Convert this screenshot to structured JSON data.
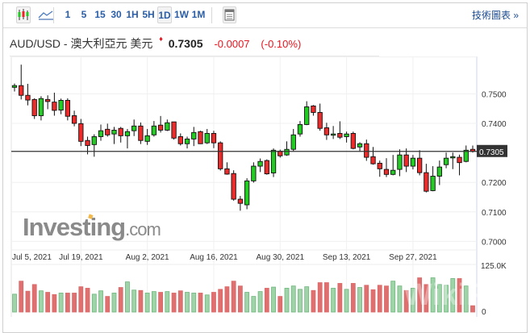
{
  "toolbar": {
    "chart_types": [
      {
        "icon": "candlestick-chart-icon",
        "selected": true
      },
      {
        "icon": "line-chart-icon",
        "selected": false
      }
    ],
    "intervals": [
      {
        "label": "1",
        "selected": false
      },
      {
        "label": "5",
        "selected": false
      },
      {
        "label": "15",
        "selected": false
      },
      {
        "label": "30",
        "selected": false
      },
      {
        "label": "1H",
        "selected": false
      },
      {
        "label": "5H",
        "selected": false
      },
      {
        "label": "1D",
        "selected": true
      },
      {
        "label": "1W",
        "selected": false
      },
      {
        "label": "1M",
        "selected": false
      }
    ],
    "table_icon": "table-view-icon",
    "technical_chart_link": "技術圖表 »"
  },
  "header": {
    "instrument": "AUD/USD - 澳大利亞元 美元",
    "direction_icon": "down-arrow-icon",
    "price": "0.7305",
    "change": "-0.0007",
    "change_pct": "(-0.10%)",
    "down_color": "#e8141e"
  },
  "watermarks": {
    "brand": "Investing.com",
    "overlay": "WikiFX"
  },
  "chart_data": {
    "type": "candlestick",
    "title": "",
    "xlabel": "",
    "ylabel": "",
    "interval": "1D",
    "x_tick_labels": [
      "Jul 5, 2021",
      "Jul 19, 2021",
      "Aug 2, 2021",
      "Aug 16, 2021",
      "Aug 30, 2021",
      "Sep 13, 2021",
      "Sep 27, 2021"
    ],
    "y_tick_labels": [
      "0.7500",
      "0.7400",
      "0.7200",
      "0.7100",
      "0.7000"
    ],
    "y_ticks": [
      0.75,
      0.74,
      0.72,
      0.71,
      0.7
    ],
    "ylim": [
      0.6995,
      0.7625
    ],
    "current_price_label": "0.7305",
    "current_price": 0.7305,
    "grid": true,
    "up_color": "#22cc22",
    "down_color": "#ee2b2b",
    "ohlc": [
      [
        0.7522,
        0.7535,
        0.7508,
        0.7528
      ],
      [
        0.7528,
        0.7599,
        0.7481,
        0.7495
      ],
      [
        0.7495,
        0.7534,
        0.7461,
        0.7479
      ],
      [
        0.7481,
        0.7485,
        0.7415,
        0.7426
      ],
      [
        0.7426,
        0.7492,
        0.741,
        0.7484
      ],
      [
        0.7481,
        0.7495,
        0.7448,
        0.7474
      ],
      [
        0.7472,
        0.7504,
        0.7426,
        0.7444
      ],
      [
        0.7445,
        0.7484,
        0.7431,
        0.7478
      ],
      [
        0.7478,
        0.7485,
        0.741,
        0.7424
      ],
      [
        0.7426,
        0.7443,
        0.739,
        0.74
      ],
      [
        0.7399,
        0.7415,
        0.7323,
        0.7339
      ],
      [
        0.7342,
        0.7355,
        0.7295,
        0.7325
      ],
      [
        0.7328,
        0.7363,
        0.7287,
        0.7355
      ],
      [
        0.7355,
        0.7396,
        0.7341,
        0.7375
      ],
      [
        0.738,
        0.7399,
        0.7355,
        0.7361
      ],
      [
        0.7364,
        0.7388,
        0.733,
        0.7377
      ],
      [
        0.7383,
        0.7388,
        0.7335,
        0.7358
      ],
      [
        0.7358,
        0.7381,
        0.7315,
        0.7372
      ],
      [
        0.7375,
        0.7413,
        0.7357,
        0.7391
      ],
      [
        0.7391,
        0.7403,
        0.733,
        0.7342
      ],
      [
        0.7339,
        0.7381,
        0.7327,
        0.7358
      ],
      [
        0.7361,
        0.7408,
        0.7355,
        0.7391
      ],
      [
        0.7394,
        0.7425,
        0.7369,
        0.7377
      ],
      [
        0.7377,
        0.7413,
        0.7374,
        0.7402
      ],
      [
        0.7405,
        0.7405,
        0.7345,
        0.735
      ],
      [
        0.7355,
        0.7366,
        0.7325,
        0.7331
      ],
      [
        0.7331,
        0.7355,
        0.7315,
        0.7347
      ],
      [
        0.7347,
        0.7388,
        0.7323,
        0.7369
      ],
      [
        0.7372,
        0.7375,
        0.733,
        0.7331
      ],
      [
        0.7334,
        0.7381,
        0.733,
        0.7366
      ],
      [
        0.7366,
        0.7375,
        0.7316,
        0.7334
      ],
      [
        0.7334,
        0.7339,
        0.724,
        0.7246
      ],
      [
        0.7246,
        0.7268,
        0.7226,
        0.7228
      ],
      [
        0.723,
        0.7241,
        0.7138,
        0.7143
      ],
      [
        0.7143,
        0.7154,
        0.7104,
        0.7129
      ],
      [
        0.7124,
        0.7214,
        0.7109,
        0.7205
      ],
      [
        0.7205,
        0.7268,
        0.7199,
        0.7255
      ],
      [
        0.7255,
        0.7281,
        0.7235,
        0.7271
      ],
      [
        0.7274,
        0.7278,
        0.7226,
        0.7229
      ],
      [
        0.7232,
        0.7315,
        0.7218,
        0.7309
      ],
      [
        0.7306,
        0.7311,
        0.7284,
        0.729
      ],
      [
        0.7293,
        0.7339,
        0.729,
        0.7312
      ],
      [
        0.7312,
        0.7381,
        0.7306,
        0.7361
      ],
      [
        0.7364,
        0.7408,
        0.7355,
        0.7396
      ],
      [
        0.7396,
        0.7475,
        0.7394,
        0.7456
      ],
      [
        0.7459,
        0.7462,
        0.7426,
        0.7437
      ],
      [
        0.7437,
        0.7467,
        0.7375,
        0.7383
      ],
      [
        0.7385,
        0.7402,
        0.7344,
        0.7361
      ],
      [
        0.7362,
        0.7391,
        0.7347,
        0.7364
      ],
      [
        0.7366,
        0.7407,
        0.7347,
        0.7353
      ],
      [
        0.7355,
        0.7372,
        0.7335,
        0.7364
      ],
      [
        0.7366,
        0.7372,
        0.7312,
        0.7315
      ],
      [
        0.732,
        0.7336,
        0.7304,
        0.7331
      ],
      [
        0.7331,
        0.7345,
        0.7273,
        0.7285
      ],
      [
        0.7287,
        0.732,
        0.726,
        0.7263
      ],
      [
        0.7265,
        0.7274,
        0.7219,
        0.7246
      ],
      [
        0.7244,
        0.7282,
        0.7218,
        0.7227
      ],
      [
        0.7227,
        0.7293,
        0.7224,
        0.7241
      ],
      [
        0.7244,
        0.7312,
        0.7221,
        0.7293
      ],
      [
        0.7293,
        0.7315,
        0.7235,
        0.7255
      ],
      [
        0.7255,
        0.7293,
        0.7244,
        0.7282
      ],
      [
        0.7282,
        0.7309,
        0.7224,
        0.7233
      ],
      [
        0.7233,
        0.7263,
        0.7166,
        0.717
      ],
      [
        0.7172,
        0.7255,
        0.717,
        0.7221
      ],
      [
        0.7221,
        0.7274,
        0.7191,
        0.7252
      ],
      [
        0.726,
        0.7301,
        0.7248,
        0.7282
      ],
      [
        0.7283,
        0.7301,
        0.7245,
        0.7287
      ],
      [
        0.7285,
        0.7294,
        0.7224,
        0.7267
      ],
      [
        0.7271,
        0.7325,
        0.7268,
        0.7309
      ],
      [
        0.7312,
        0.7325,
        0.7301,
        0.7305
      ]
    ],
    "volume": {
      "y_tick_labels": [
        "125.0K",
        "0"
      ],
      "ylim": [
        0,
        125000
      ],
      "up_color": "#9fd3a8",
      "down_color": "#e07070",
      "values": [
        48,
        83,
        56,
        74,
        57,
        53,
        47,
        51,
        51,
        51,
        68,
        64,
        48,
        57,
        42,
        51,
        66,
        81,
        59,
        58,
        51,
        55,
        53,
        55,
        51,
        57,
        53,
        51,
        51,
        46,
        53,
        61,
        68,
        83,
        70,
        53,
        42,
        55,
        64,
        67,
        42,
        64,
        70,
        61,
        68,
        58,
        79,
        79,
        64,
        77,
        61,
        77,
        66,
        72,
        60,
        72,
        70,
        83,
        70,
        58,
        64,
        92,
        74,
        92,
        74,
        72,
        90,
        90,
        70,
        17
      ]
    }
  }
}
